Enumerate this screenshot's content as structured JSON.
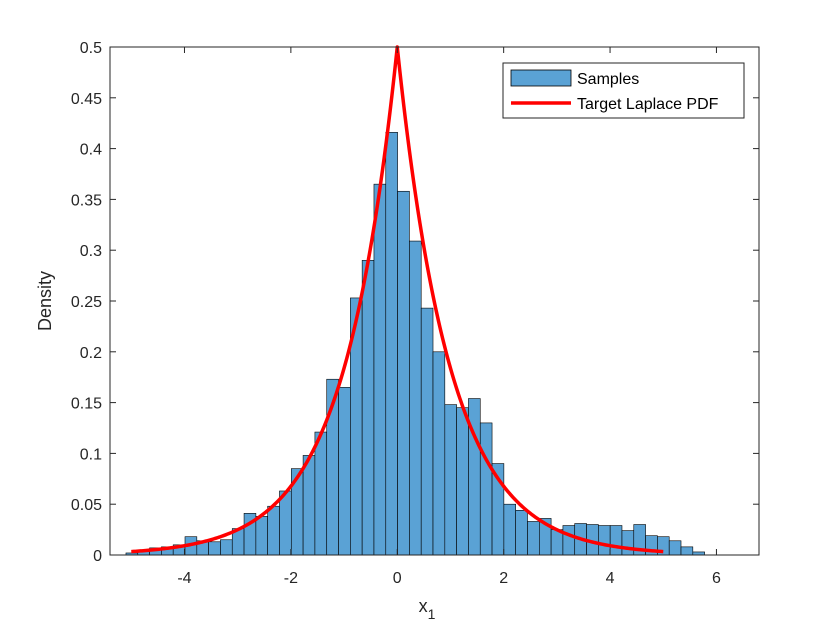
{
  "chart_data": {
    "type": "bar",
    "xlabel": "x",
    "xlabel_subscript": "1",
    "ylabel": "Density",
    "xlim": [
      -5.4,
      6.8
    ],
    "ylim": [
      0,
      0.5
    ],
    "grid": false,
    "legend_placement": "top-right",
    "xticks": [
      -4,
      -2,
      0,
      2,
      4,
      6
    ],
    "xtick_labels": [
      "-4",
      "-2",
      "0",
      "2",
      "4",
      "6"
    ],
    "yticks": [
      0,
      0.05,
      0.1,
      0.15,
      0.2,
      0.25,
      0.3,
      0.35,
      0.4,
      0.45,
      0.5
    ],
    "ytick_labels": [
      "0",
      "0.05",
      "0.1",
      "0.15",
      "0.2",
      "0.25",
      "0.3",
      "0.35",
      "0.4",
      "0.45",
      "0.5"
    ],
    "histogram": {
      "name": "Samples",
      "color": "#5aa2d5",
      "edge_color": "#000000",
      "bin_start": -5.1,
      "bin_width": 0.222,
      "values": [
        0.002,
        0.005,
        0.007,
        0.008,
        0.01,
        0.018,
        0.014,
        0.013,
        0.015,
        0.026,
        0.041,
        0.038,
        0.048,
        0.063,
        0.085,
        0.098,
        0.121,
        0.173,
        0.165,
        0.253,
        0.29,
        0.365,
        0.416,
        0.358,
        0.309,
        0.243,
        0.2,
        0.148,
        0.145,
        0.154,
        0.13,
        0.09,
        0.05,
        0.044,
        0.033,
        0.036,
        0.025,
        0.029,
        0.031,
        0.03,
        0.029,
        0.029,
        0.024,
        0.03,
        0.019,
        0.018,
        0.014,
        0.008,
        0.003
      ]
    },
    "curve": {
      "name": "Target Laplace PDF",
      "color": "#ff0000",
      "function": "0.5*exp(-|x|)",
      "x_range": [
        -5,
        5
      ]
    }
  }
}
